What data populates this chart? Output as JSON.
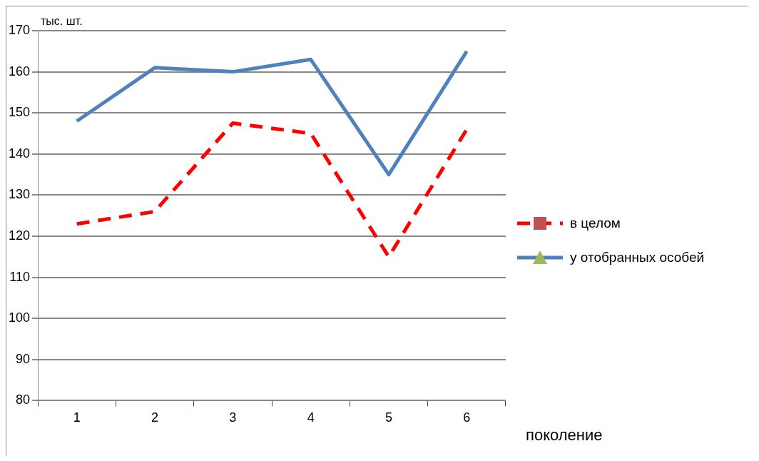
{
  "chart_data": {
    "type": "line",
    "xlabel": "поколение",
    "ylabel": "тыс. шт.",
    "categories": [
      "1",
      "2",
      "3",
      "4",
      "5",
      "6"
    ],
    "ylim": [
      80,
      170
    ],
    "yticks": [
      80,
      90,
      100,
      110,
      120,
      130,
      140,
      150,
      160,
      170
    ],
    "grid": "y",
    "legend": "right",
    "series": [
      {
        "name": "в целом",
        "color": "#ff0000",
        "values": [
          123,
          126,
          147.5,
          145,
          115,
          146
        ],
        "line_style": "dashed"
      },
      {
        "name": "у отобранных особей",
        "color": "#4f81bd",
        "values": [
          148,
          161,
          160,
          163,
          135,
          165
        ],
        "line_style": "solid"
      }
    ]
  }
}
